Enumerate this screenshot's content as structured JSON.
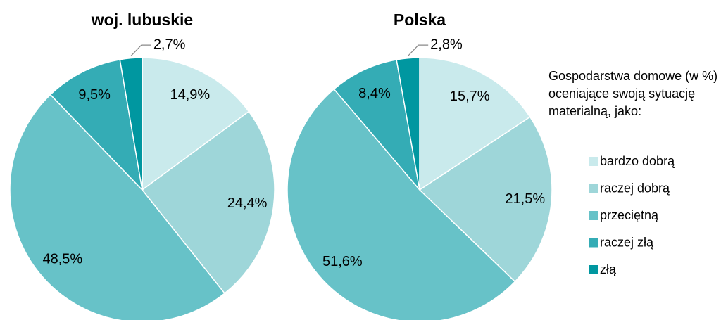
{
  "chart_data": {
    "type": "pie",
    "categories": [
      "bardzo dobrą",
      "raczej dobrą",
      "przeciętną",
      "raczej złą",
      "złą"
    ],
    "colors": [
      "#c9eaec",
      "#9ed6d9",
      "#67c2c8",
      "#34acb5",
      "#0097a0"
    ],
    "legend_title": "Gospodarstwa domowe (w %) oceniające swoją sytuację materialną, jako:",
    "series": [
      {
        "name": "woj. lubuskie",
        "values": [
          14.9,
          24.4,
          48.5,
          9.5,
          2.7
        ],
        "value_labels": [
          "14,9%",
          "24,4%",
          "48,5%",
          "9,5%",
          "2,7%"
        ]
      },
      {
        "name": "Polska",
        "values": [
          15.7,
          21.5,
          51.6,
          8.4,
          2.8
        ],
        "value_labels": [
          "15,7%",
          "21,5%",
          "51,6%",
          "8,4%",
          "2,8%"
        ]
      }
    ]
  }
}
